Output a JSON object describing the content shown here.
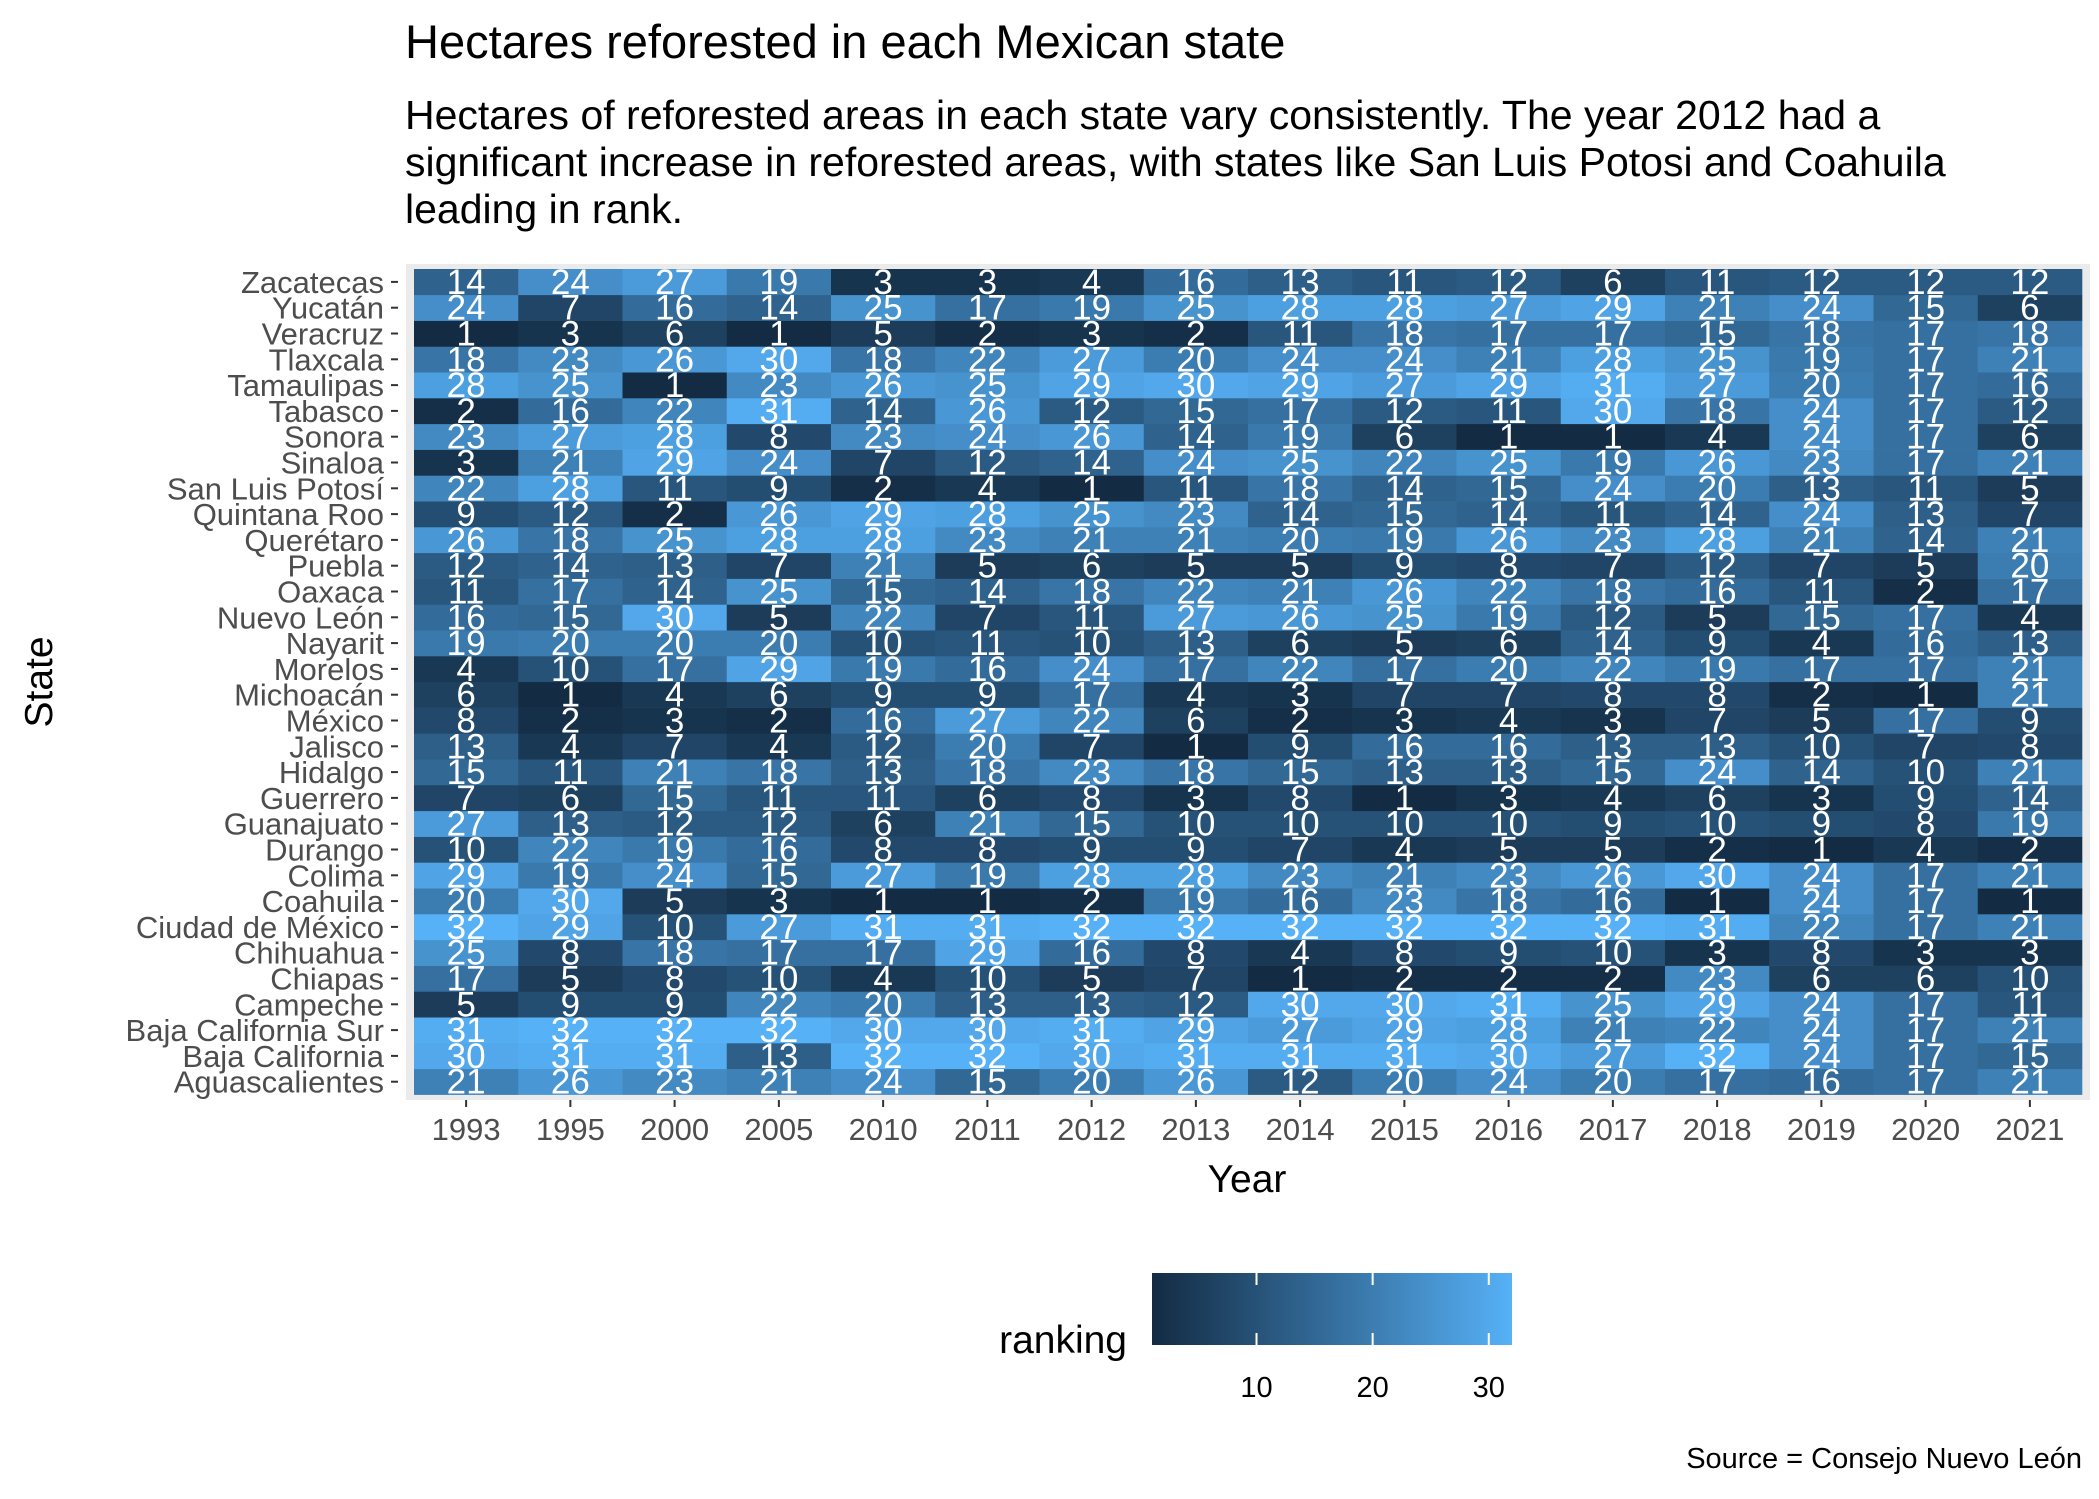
{
  "chart_data": {
    "type": "heatmap",
    "title": "Hectares reforested in each Mexican state",
    "subtitle": "Hectares of reforested areas in each state vary consistently. The year 2012 had a significant increase in reforested areas, with states like San Luis Potosi and Coahuila leading in rank.",
    "caption": "Source = Consejo Nuevo León",
    "xlabel": "Year",
    "ylabel": "State",
    "x": [
      "1993",
      "1995",
      "2000",
      "2005",
      "2010",
      "2011",
      "2012",
      "2013",
      "2014",
      "2015",
      "2016",
      "2017",
      "2018",
      "2019",
      "2020",
      "2021"
    ],
    "y": [
      "Aguascalientes",
      "Baja California",
      "Baja California Sur",
      "Campeche",
      "Chiapas",
      "Chihuahua",
      "Ciudad de México",
      "Coahuila",
      "Colima",
      "Durango",
      "Guanajuato",
      "Guerrero",
      "Hidalgo",
      "Jalisco",
      "México",
      "Michoacán",
      "Morelos",
      "Nayarit",
      "Nuevo León",
      "Oaxaca",
      "Puebla",
      "Querétaro",
      "Quintana Roo",
      "San Luis Potosí",
      "Sinaloa",
      "Sonora",
      "Tabasco",
      "Tamaulipas",
      "Tlaxcala",
      "Veracruz",
      "Yucatán",
      "Zacatecas"
    ],
    "values": [
      [
        21,
        26,
        23,
        21,
        24,
        15,
        20,
        26,
        12,
        20,
        24,
        20,
        17,
        16,
        17,
        21
      ],
      [
        30,
        31,
        31,
        13,
        32,
        32,
        30,
        31,
        31,
        31,
        30,
        27,
        32,
        24,
        17,
        15
      ],
      [
        31,
        32,
        32,
        32,
        30,
        30,
        31,
        29,
        27,
        29,
        28,
        21,
        22,
        24,
        17,
        21
      ],
      [
        5,
        9,
        9,
        22,
        20,
        13,
        13,
        12,
        30,
        30,
        31,
        25,
        29,
        24,
        17,
        11
      ],
      [
        17,
        5,
        8,
        10,
        4,
        10,
        5,
        7,
        1,
        2,
        2,
        2,
        23,
        6,
        6,
        10
      ],
      [
        25,
        8,
        18,
        17,
        17,
        29,
        16,
        8,
        4,
        8,
        9,
        10,
        3,
        8,
        3,
        3
      ],
      [
        32,
        29,
        10,
        27,
        31,
        31,
        32,
        32,
        32,
        32,
        32,
        32,
        31,
        22,
        17,
        21
      ],
      [
        20,
        30,
        5,
        3,
        1,
        1,
        2,
        19,
        16,
        23,
        18,
        16,
        1,
        24,
        17,
        1
      ],
      [
        29,
        19,
        24,
        15,
        27,
        19,
        28,
        28,
        23,
        21,
        23,
        26,
        30,
        24,
        17,
        21
      ],
      [
        10,
        22,
        19,
        16,
        8,
        8,
        9,
        9,
        7,
        4,
        5,
        5,
        2,
        1,
        4,
        2
      ],
      [
        27,
        13,
        12,
        12,
        6,
        21,
        15,
        10,
        10,
        10,
        10,
        9,
        10,
        9,
        8,
        19
      ],
      [
        7,
        6,
        15,
        11,
        11,
        6,
        8,
        3,
        8,
        1,
        3,
        4,
        6,
        3,
        9,
        14
      ],
      [
        15,
        11,
        21,
        18,
        13,
        18,
        23,
        18,
        15,
        13,
        13,
        15,
        24,
        14,
        10,
        21
      ],
      [
        13,
        4,
        7,
        4,
        12,
        20,
        7,
        1,
        9,
        16,
        16,
        13,
        13,
        10,
        7,
        8
      ],
      [
        8,
        2,
        3,
        2,
        16,
        27,
        22,
        6,
        2,
        3,
        4,
        3,
        7,
        5,
        17,
        9
      ],
      [
        6,
        1,
        4,
        6,
        9,
        9,
        17,
        4,
        3,
        7,
        7,
        8,
        8,
        2,
        1,
        21
      ],
      [
        4,
        10,
        17,
        29,
        19,
        16,
        24,
        17,
        22,
        17,
        20,
        22,
        19,
        17,
        17,
        21
      ],
      [
        19,
        20,
        20,
        20,
        10,
        11,
        10,
        13,
        6,
        5,
        6,
        14,
        9,
        4,
        16,
        13
      ],
      [
        16,
        15,
        30,
        5,
        22,
        7,
        11,
        27,
        26,
        25,
        19,
        12,
        5,
        15,
        17,
        4
      ],
      [
        11,
        17,
        14,
        25,
        15,
        14,
        18,
        22,
        21,
        26,
        22,
        18,
        16,
        11,
        2,
        17
      ],
      [
        12,
        14,
        13,
        7,
        21,
        5,
        6,
        5,
        5,
        9,
        8,
        7,
        12,
        7,
        5,
        20
      ],
      [
        26,
        18,
        25,
        28,
        28,
        23,
        21,
        21,
        20,
        19,
        26,
        23,
        28,
        21,
        14,
        21
      ],
      [
        9,
        12,
        2,
        26,
        29,
        28,
        25,
        23,
        14,
        15,
        14,
        11,
        14,
        24,
        13,
        7
      ],
      [
        22,
        28,
        11,
        9,
        2,
        4,
        1,
        11,
        18,
        14,
        15,
        24,
        20,
        13,
        11,
        5
      ],
      [
        3,
        21,
        29,
        24,
        7,
        12,
        14,
        24,
        25,
        22,
        25,
        19,
        26,
        23,
        17,
        21
      ],
      [
        23,
        27,
        28,
        8,
        23,
        24,
        26,
        14,
        19,
        6,
        1,
        1,
        4,
        24,
        17,
        6
      ],
      [
        2,
        16,
        22,
        31,
        14,
        26,
        12,
        15,
        17,
        12,
        11,
        30,
        18,
        24,
        17,
        12
      ],
      [
        28,
        25,
        1,
        23,
        26,
        25,
        29,
        30,
        29,
        27,
        29,
        31,
        27,
        20,
        17,
        16
      ],
      [
        18,
        23,
        26,
        30,
        18,
        22,
        27,
        20,
        24,
        24,
        21,
        28,
        25,
        19,
        17,
        21
      ],
      [
        1,
        3,
        6,
        1,
        5,
        2,
        3,
        2,
        11,
        18,
        17,
        17,
        15,
        18,
        17,
        18
      ],
      [
        24,
        7,
        16,
        14,
        25,
        17,
        19,
        25,
        28,
        28,
        27,
        29,
        21,
        24,
        15,
        6
      ],
      [
        14,
        24,
        27,
        19,
        3,
        3,
        4,
        16,
        13,
        11,
        12,
        6,
        11,
        12,
        12,
        12
      ]
    ],
    "colorscale": {
      "low": "#132B43",
      "high": "#56B1F7",
      "min": 1,
      "max": 32
    },
    "legend": {
      "title": "ranking",
      "ticks": [
        10,
        20,
        30
      ],
      "position": "bottom"
    },
    "grid": true
  }
}
